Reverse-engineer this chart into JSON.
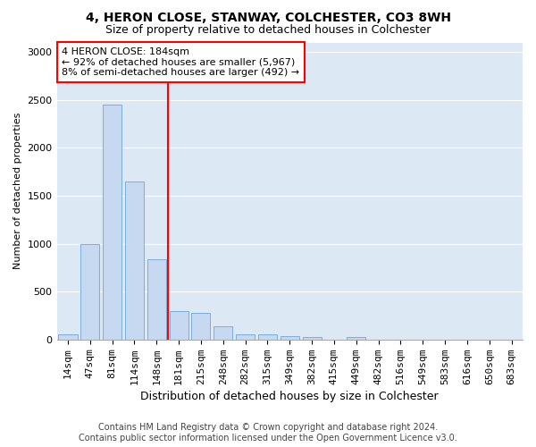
{
  "title1": "4, HERON CLOSE, STANWAY, COLCHESTER, CO3 8WH",
  "title2": "Size of property relative to detached houses in Colchester",
  "xlabel": "Distribution of detached houses by size in Colchester",
  "ylabel": "Number of detached properties",
  "footer1": "Contains HM Land Registry data © Crown copyright and database right 2024.",
  "footer2": "Contains public sector information licensed under the Open Government Licence v3.0.",
  "categories": [
    "14sqm",
    "47sqm",
    "81sqm",
    "114sqm",
    "148sqm",
    "181sqm",
    "215sqm",
    "248sqm",
    "282sqm",
    "315sqm",
    "349sqm",
    "382sqm",
    "415sqm",
    "449sqm",
    "482sqm",
    "516sqm",
    "549sqm",
    "583sqm",
    "616sqm",
    "650sqm",
    "683sqm"
  ],
  "values": [
    55,
    1000,
    2450,
    1650,
    840,
    300,
    280,
    140,
    55,
    55,
    40,
    25,
    0,
    30,
    0,
    0,
    0,
    0,
    0,
    0,
    0
  ],
  "bar_color": "#c6d9f0",
  "bar_edge_color": "#7aafda",
  "annotation_text1": "4 HERON CLOSE: 184sqm",
  "annotation_text2": "← 92% of detached houses are smaller (5,967)",
  "annotation_text3": "8% of semi-detached houses are larger (492) →",
  "annotation_box_color": "white",
  "annotation_box_edge_color": "red",
  "vline_color": "red",
  "vline_x_index": 4,
  "ylim": [
    0,
    3100
  ],
  "yticks": [
    0,
    500,
    1000,
    1500,
    2000,
    2500,
    3000
  ],
  "background_color": "#dde8f5",
  "grid_color": "white",
  "title1_fontsize": 10,
  "title2_fontsize": 9,
  "xlabel_fontsize": 9,
  "ylabel_fontsize": 8,
  "tick_fontsize": 8,
  "footer_fontsize": 7
}
